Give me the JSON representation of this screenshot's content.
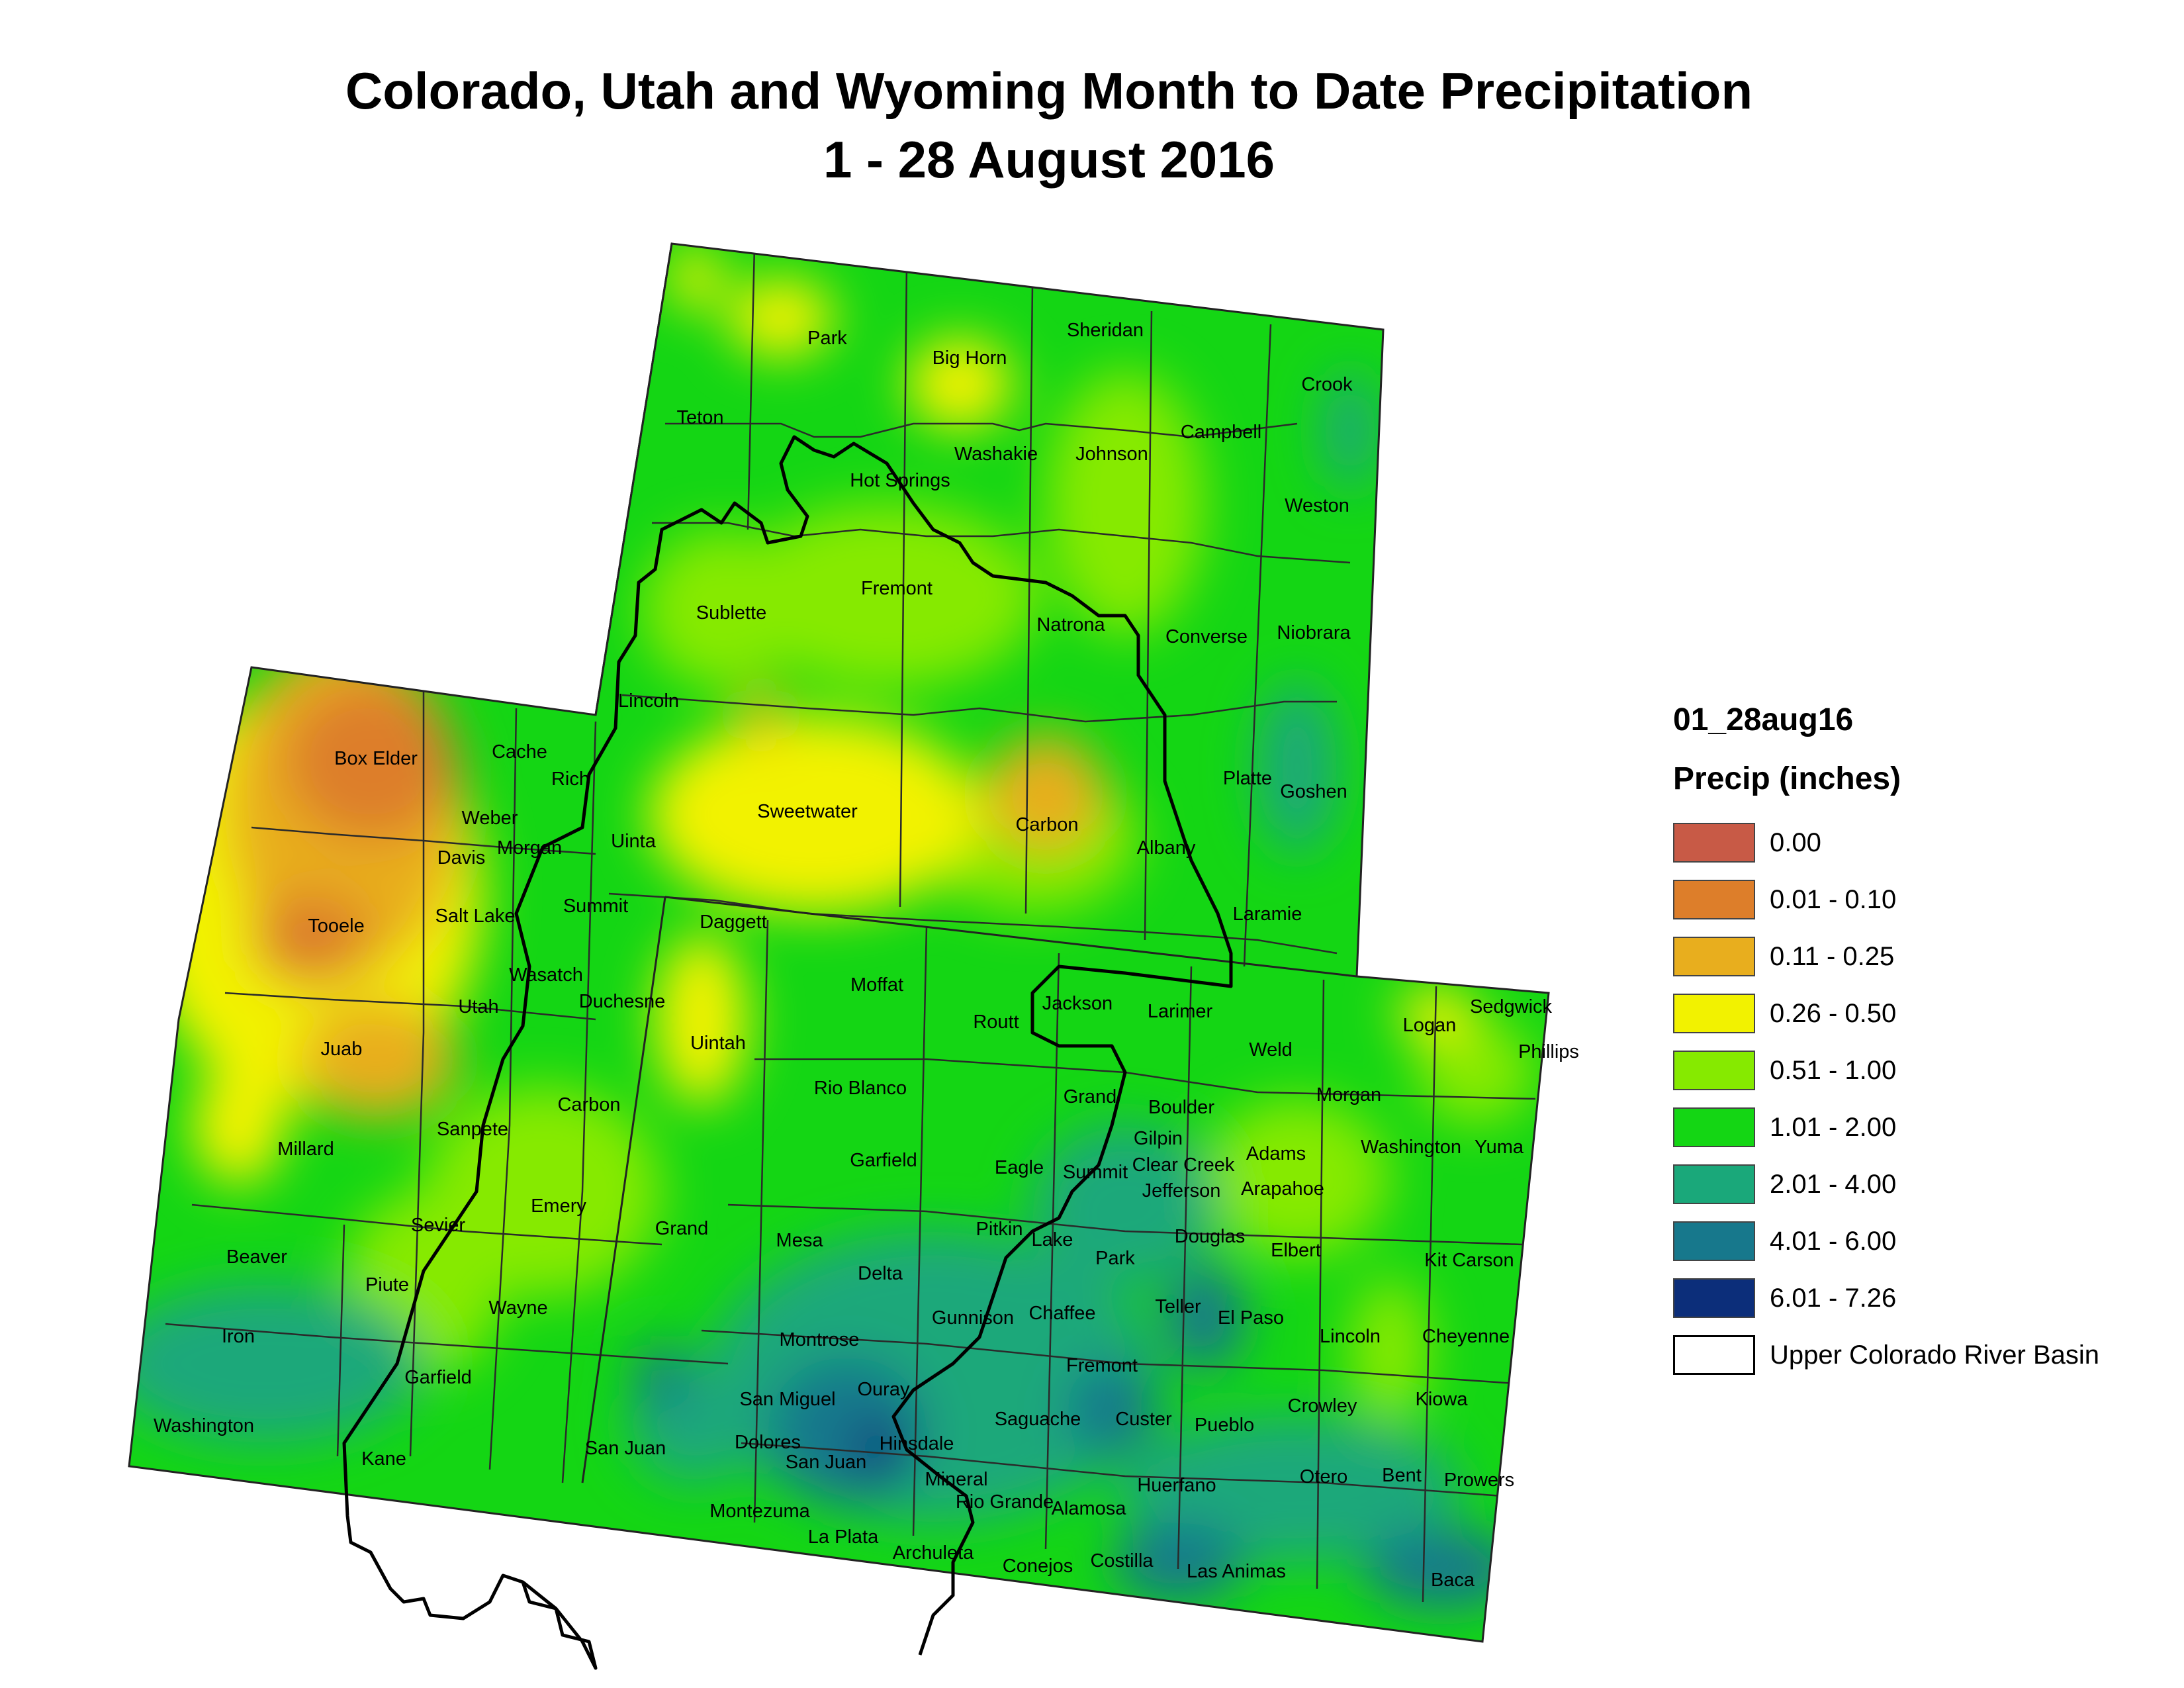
{
  "title": {
    "line1": "Colorado, Utah and Wyoming Month to Date Precipitation",
    "line2": "1 - 28 August 2016"
  },
  "legend": {
    "layer_name": "01_28aug16",
    "subtitle": "Precip (inches)",
    "items": [
      {
        "label": "0.00",
        "color": "#c85a46"
      },
      {
        "label": "0.01 - 0.10",
        "color": "#dd7e2a"
      },
      {
        "label": "0.11 - 0.25",
        "color": "#e8ae1e"
      },
      {
        "label": "0.26 - 0.50",
        "color": "#f2f200"
      },
      {
        "label": "0.51 - 1.00",
        "color": "#86ea00"
      },
      {
        "label": "1.01 - 2.00",
        "color": "#14d614"
      },
      {
        "label": "2.01 - 4.00",
        "color": "#1aa87a"
      },
      {
        "label": "4.01 - 6.00",
        "color": "#17788c"
      },
      {
        "label": "6.01 - 7.26",
        "color": "#0c2e7a"
      },
      {
        "label": "Upper Colorado River Basin",
        "color": "#ffffff"
      }
    ]
  },
  "counties": {
    "wyoming": [
      "Park",
      "Big Horn",
      "Sheridan",
      "Crook",
      "Teton",
      "Washakie",
      "Johnson",
      "Campbell",
      "Hot Springs",
      "Weston",
      "Fremont",
      "Sublette",
      "Natrona",
      "Converse",
      "Niobrara",
      "Lincoln",
      "Sweetwater",
      "Carbon",
      "Albany",
      "Platte",
      "Goshen",
      "Uinta",
      "Laramie"
    ],
    "utah": [
      "Box Elder",
      "Cache",
      "Rich",
      "Weber",
      "Davis",
      "Morgan",
      "Tooele",
      "Salt Lake",
      "Summit",
      "Daggett",
      "Wasatch",
      "Duchesne",
      "Utah",
      "Juab",
      "Uintah",
      "Carbon",
      "Millard",
      "Sanpete",
      "Emery",
      "Sevier",
      "Grand",
      "Beaver",
      "Piute",
      "Wayne",
      "Iron",
      "Garfield",
      "Washington",
      "Kane",
      "San Juan"
    ],
    "colorado": [
      "Moffat",
      "Routt",
      "Jackson",
      "Larimer",
      "Logan",
      "Sedgwick",
      "Phillips",
      "Weld",
      "Rio Blanco",
      "Grand",
      "Boulder",
      "Morgan",
      "Garfield",
      "Eagle",
      "Summit",
      "Gilpin",
      "Clear Creek",
      "Adams",
      "Washington",
      "Yuma",
      "Jefferson",
      "Arapahoe",
      "Mesa",
      "Pitkin",
      "Lake",
      "Douglas",
      "Elbert",
      "Kit Carson",
      "Delta",
      "Park",
      "Gunnison",
      "Chaffee",
      "Teller",
      "El Paso",
      "Lincoln",
      "Cheyenne",
      "Montrose",
      "Fremont",
      "San Miguel",
      "Ouray",
      "Saguache",
      "Custer",
      "Pueblo",
      "Crowley",
      "Kiowa",
      "Dolores",
      "Hinsdale",
      "San Juan",
      "Mineral",
      "Huerfano",
      "Otero",
      "Bent",
      "Prowers",
      "Montezuma",
      "Rio Grande",
      "Alamosa",
      "La Plata",
      "Archuleta",
      "Conejos",
      "Costilla",
      "Las Animas",
      "Baca"
    ]
  }
}
